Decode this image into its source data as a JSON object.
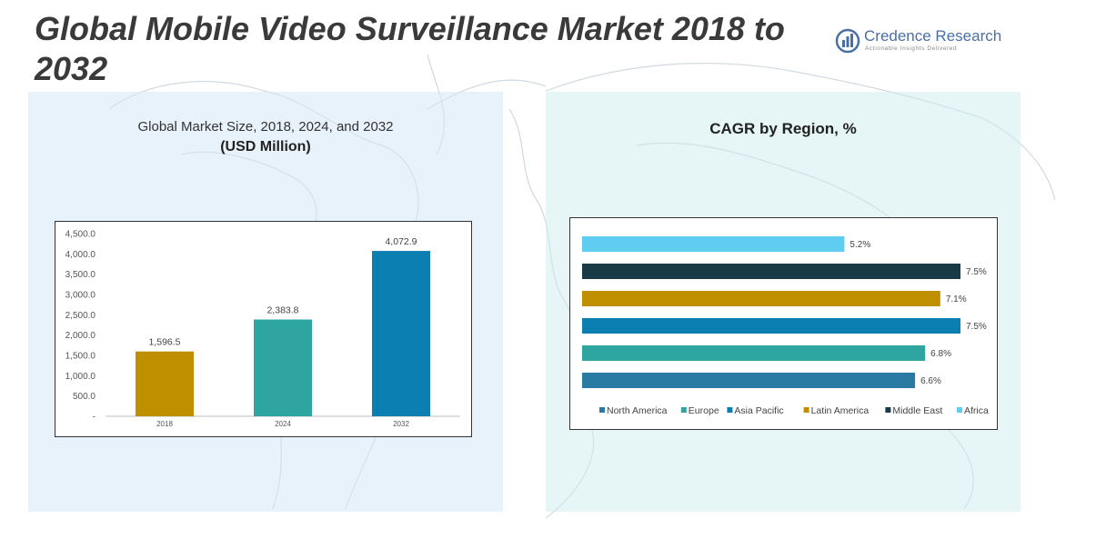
{
  "title": "Global Mobile Video Surveillance Market 2018 to 2032",
  "logo": {
    "name": "Credence Research",
    "tagline": "Actionable Insights Delivered"
  },
  "left_panel": {
    "subtitle": "Global Market Size, 2018, 2024, and 2032",
    "unit": "(USD Million)"
  },
  "right_panel": {
    "title": "CAGR by Region, %"
  },
  "chart_data": [
    {
      "type": "bar",
      "title": "Global Market Size, 2018, 2024, and 2032",
      "ylabel": "USD Million",
      "categories": [
        "2018",
        "2024",
        "2032"
      ],
      "values": [
        1596.5,
        2383.8,
        4072.9
      ],
      "value_labels": [
        "1,596.5",
        "2,383.8",
        "4,072.9"
      ],
      "colors": [
        "#c08f00",
        "#2ea5a0",
        "#0b7fb2"
      ],
      "ylim": [
        0,
        4500
      ],
      "yticks": [
        0,
        500,
        1000,
        1500,
        2000,
        2500,
        3000,
        3500,
        4000,
        4500
      ],
      "ytick_labels": [
        "-",
        "500.0",
        "1,000.0",
        "1,500.0",
        "2,000.0",
        "2,500.0",
        "3,000.0",
        "3,500.0",
        "4,000.0",
        "4,500.0"
      ],
      "grid": false
    },
    {
      "type": "bar",
      "orientation": "horizontal",
      "title": "CAGR by Region, %",
      "categories": [
        "North America",
        "Europe",
        "Asia Pacific",
        "Latin America",
        "Middle East",
        "Africa"
      ],
      "values": [
        6.6,
        6.8,
        7.5,
        7.1,
        7.5,
        5.2
      ],
      "value_labels": [
        "6.6%",
        "6.8%",
        "7.5%",
        "7.1%",
        "7.5%",
        "5.2%"
      ],
      "colors": [
        "#2a7aa3",
        "#2ea5a0",
        "#0b7fb2",
        "#c08f00",
        "#183b47",
        "#5fcdf2"
      ],
      "xlim": [
        0,
        7.5
      ],
      "legend": "bottom",
      "grid": false
    }
  ]
}
